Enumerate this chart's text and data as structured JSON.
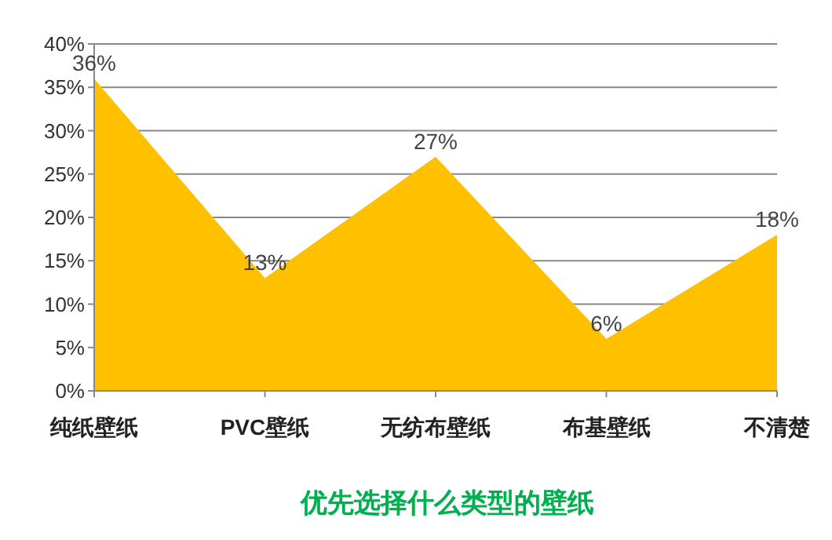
{
  "chart_data": {
    "type": "area",
    "title": "优先选择什么类型的壁纸",
    "categories": [
      "纯纸壁纸",
      "PVC壁纸",
      "无纺布壁纸",
      "布基壁纸",
      "不清楚"
    ],
    "values": [
      36,
      13,
      27,
      6,
      18
    ],
    "color": "#ffc000",
    "value_labels": [
      "36%",
      "13%",
      "27%",
      "6%",
      "18%"
    ],
    "ylim": [
      0,
      40
    ],
    "yticks": [
      {
        "value": 0,
        "label": "0%"
      },
      {
        "value": 5,
        "label": "5%"
      },
      {
        "value": 10,
        "label": "10%"
      },
      {
        "value": 15,
        "label": "15%"
      },
      {
        "value": 20,
        "label": "20%"
      },
      {
        "value": 25,
        "label": "25%"
      },
      {
        "value": 30,
        "label": "30%"
      },
      {
        "value": 35,
        "label": "35%"
      },
      {
        "value": 40,
        "label": "40%"
      }
    ],
    "grid": "y"
  }
}
